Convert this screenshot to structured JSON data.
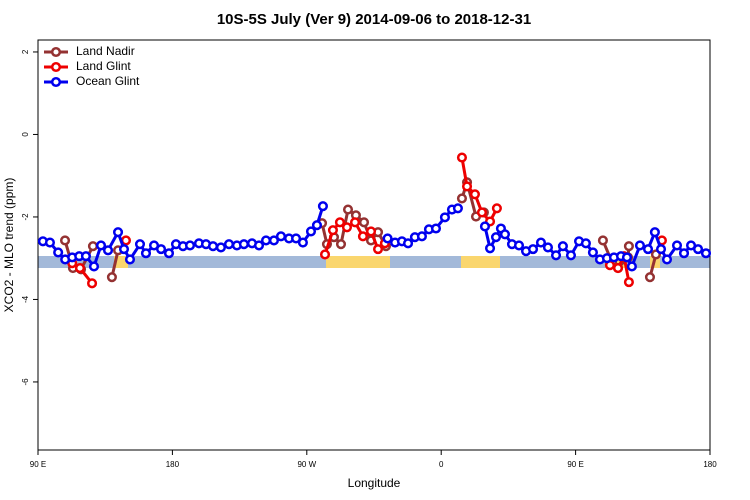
{
  "chart_data": {
    "type": "line",
    "title": "10S-5S July (Ver 9)   2014-09-06 to 2018-12-31",
    "xlabel": "Longitude",
    "ylabel": "XCO2 - MLO trend (ppm)",
    "xlim": [
      90,
      540
    ],
    "ylim": [
      -7.65,
      2.29
    ],
    "xticks": [
      {
        "value": 90,
        "label": "90 E"
      },
      {
        "value": 180,
        "label": "180"
      },
      {
        "value": 270,
        "label": "90 W"
      },
      {
        "value": 360,
        "label": "0"
      },
      {
        "value": 450,
        "label": "90 E"
      },
      {
        "value": 540,
        "label": "180"
      }
    ],
    "yticks": [
      -6,
      -4,
      -2,
      0,
      2
    ],
    "legend": "top-left",
    "series": [
      {
        "name": "Land Nadir",
        "color": "#943232",
        "x": [
          108.1,
          113.4,
          118.8,
          126.8,
          null,
          139.5,
          143.6,
          null,
          280.2,
          283.5,
          288.2,
          292.9,
          297.6,
          302.9,
          308.3,
          313.0,
          317.7,
          323.0,
          null,
          373.9,
          377.3,
          383.3,
          388.6,
          null,
          468.3,
          474.4,
          478.4,
          485.1,
          485.7,
          null,
          499.8,
          503.8
        ],
        "values": [
          -2.57,
          -3.24,
          -3.27,
          -2.71,
          null,
          -3.46,
          -2.81,
          null,
          -2.15,
          -2.66,
          -2.49,
          -2.66,
          -1.82,
          -1.96,
          -2.13,
          -2.57,
          -2.37,
          -2.71,
          null,
          -1.55,
          -1.16,
          -1.99,
          -1.89,
          null,
          -2.57,
          -3.1,
          -3.24,
          -2.98,
          -2.71,
          null,
          -3.46,
          -2.91
        ]
      },
      {
        "name": "Land Glint",
        "color": "#ee0000",
        "x": [
          112.9,
          118.1,
          126.2,
          null,
          148.9,
          null,
          282.2,
          287.5,
          292.2,
          296.9,
          302.3,
          307.6,
          313.0,
          317.7,
          322.3,
          null,
          373.9,
          377.3,
          382.6,
          387.3,
          392.7,
          397.3,
          null,
          473.0,
          478.4,
          482.4,
          485.7,
          null,
          507.8
        ],
        "values": [
          -3.12,
          -3.24,
          -3.61,
          null,
          -2.57,
          null,
          -2.91,
          -2.32,
          -2.13,
          -2.25,
          -2.13,
          -2.47,
          -2.35,
          -2.78,
          -2.64,
          null,
          -0.56,
          -1.26,
          -1.45,
          -1.89,
          -2.11,
          -1.79,
          null,
          -3.17,
          -3.24,
          -2.95,
          -3.58,
          null,
          -2.57
        ]
      },
      {
        "name": "Ocean Glint",
        "color": "#0000ee",
        "x": [
          93.3,
          98.0,
          103.5,
          108.2,
          112.9,
          117.6,
          122.1,
          127.5,
          132.2,
          136.9,
          143.6,
          147.6,
          151.6,
          158.3,
          162.3,
          167.7,
          172.4,
          177.7,
          182.4,
          187.1,
          191.8,
          197.8,
          202.5,
          207.2,
          212.5,
          217.9,
          223.2,
          227.9,
          233.3,
          238.0,
          242.7,
          248.0,
          252.7,
          258.1,
          262.8,
          267.4,
          272.8,
          276.8,
          280.8,
          null,
          324.1,
          329.1,
          333.7,
          337.8,
          342.4,
          347.1,
          351.8,
          356.5,
          362.5,
          367.2,
          371.2,
          null,
          389.3,
          392.7,
          396.7,
          400.0,
          402.7,
          407.4,
          412.1,
          416.8,
          421.5,
          426.8,
          431.5,
          436.9,
          441.5,
          446.9,
          452.3,
          456.9,
          461.6,
          466.3,
          471.0,
          475.7,
          480.4,
          484.4,
          487.7,
          493.1,
          498.5,
          503.1,
          507.2,
          511.2,
          517.9,
          522.6,
          527.3,
          532.0,
          537.3
        ],
        "values": [
          -2.59,
          -2.62,
          -2.86,
          -3.03,
          -2.98,
          -2.95,
          -2.95,
          -3.2,
          -2.69,
          -2.81,
          -2.37,
          -2.78,
          -3.03,
          -2.66,
          -2.88,
          -2.69,
          -2.78,
          -2.88,
          -2.66,
          -2.71,
          -2.69,
          -2.64,
          -2.66,
          -2.71,
          -2.74,
          -2.66,
          -2.69,
          -2.66,
          -2.64,
          -2.69,
          -2.57,
          -2.57,
          -2.47,
          -2.52,
          -2.52,
          -2.62,
          -2.35,
          -2.2,
          -1.74,
          null,
          -2.52,
          -2.62,
          -2.59,
          -2.64,
          -2.49,
          -2.47,
          -2.3,
          -2.28,
          -2.01,
          -1.82,
          -1.79,
          null,
          -2.23,
          -2.76,
          -2.49,
          -2.28,
          -2.42,
          -2.66,
          -2.69,
          -2.83,
          -2.78,
          -2.62,
          -2.74,
          -2.93,
          -2.71,
          -2.93,
          -2.59,
          -2.64,
          -2.86,
          -3.03,
          -3.0,
          -2.98,
          -2.95,
          -2.98,
          -3.2,
          -2.69,
          -2.78,
          -2.37,
          -2.78,
          -3.03,
          -2.69,
          -2.88,
          -2.69,
          -2.78,
          -2.88
        ]
      }
    ]
  }
}
